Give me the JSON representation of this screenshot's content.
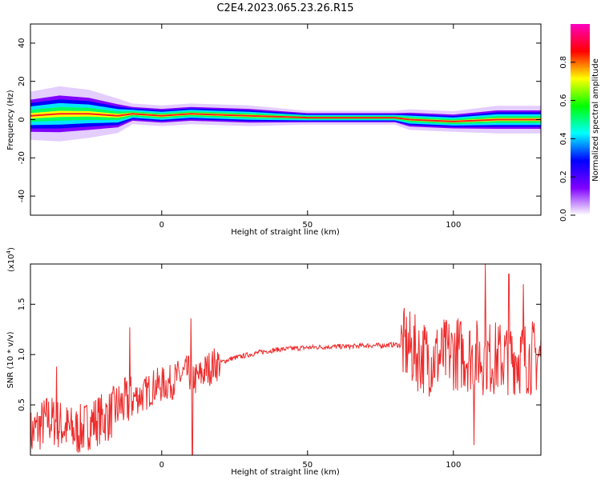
{
  "figure_title": "C2E4.2023.065.23.26.R15",
  "chart_data": [
    {
      "type": "heatmap",
      "xlabel": "Height of straight line (km)",
      "ylabel": "Frequency (Hz)",
      "xlim": [
        -45,
        130
      ],
      "ylim": [
        -50,
        50
      ],
      "x_ticks": [
        0,
        50,
        100
      ],
      "y_ticks": [
        -40,
        -20,
        0,
        20,
        40
      ],
      "colorbar": {
        "label": "Normalized spectral amplitude",
        "range": [
          0,
          1
        ],
        "ticks": [
          "0.0",
          "0.2",
          "0.4",
          "0.6",
          "0.8"
        ],
        "colormap": [
          "#ffffff",
          "#8000ff",
          "#0000ff",
          "#00ffff",
          "#00ff00",
          "#ffff00",
          "#ff0000",
          "#ff00c0"
        ]
      },
      "ridge_profile": [
        {
          "x": -45,
          "center": 2,
          "halfwidth": 7
        },
        {
          "x": -35,
          "center": 3,
          "halfwidth": 8
        },
        {
          "x": -25,
          "center": 3,
          "halfwidth": 7
        },
        {
          "x": -15,
          "center": 2,
          "halfwidth": 5
        },
        {
          "x": -10,
          "center": 3,
          "halfwidth": 3
        },
        {
          "x": 0,
          "center": 2,
          "halfwidth": 3
        },
        {
          "x": 10,
          "center": 3,
          "halfwidth": 3
        },
        {
          "x": 30,
          "center": 2,
          "halfwidth": 3
        },
        {
          "x": 50,
          "center": 1,
          "halfwidth": 2
        },
        {
          "x": 70,
          "center": 1,
          "halfwidth": 2
        },
        {
          "x": 80,
          "center": 1,
          "halfwidth": 2
        },
        {
          "x": 85,
          "center": 0,
          "halfwidth": 3
        },
        {
          "x": 100,
          "center": -1,
          "halfwidth": 3
        },
        {
          "x": 115,
          "center": 0,
          "halfwidth": 4
        },
        {
          "x": 130,
          "center": 0,
          "halfwidth": 4
        }
      ]
    },
    {
      "type": "line",
      "xlabel": "Height of straight line (km)",
      "ylabel": "SNR (10 * v/v)",
      "y_multiplier": "(x10",
      "y_multiplier_exp": "4",
      "y_multiplier_close": ")",
      "xlim": [
        -45,
        130
      ],
      "ylim": [
        0,
        19000
      ],
      "x_ticks": [
        0,
        50,
        100
      ],
      "y_ticks": [
        "0.5",
        "1.0",
        "1.5"
      ],
      "y_tick_values": [
        5000,
        10000,
        15000
      ],
      "series": [
        {
          "color": "#ee2b2b",
          "points": [
            [
              -45,
              2000
            ],
            [
              -42,
              2800
            ],
            [
              -39,
              3600
            ],
            [
              -36,
              3200
            ],
            [
              -33,
              2700
            ],
            [
              -30,
              2300
            ],
            [
              -27,
              2600
            ],
            [
              -24,
              3300
            ],
            [
              -21,
              3600
            ],
            [
              -18,
              3900
            ],
            [
              -15,
              4800
            ],
            [
              -12,
              5200
            ],
            [
              -9,
              5800
            ],
            [
              -6,
              6000
            ],
            [
              -3,
              6800
            ],
            [
              0,
              7000
            ],
            [
              3,
              7200
            ],
            [
              6,
              7800
            ],
            [
              9,
              8200
            ],
            [
              12,
              7500
            ],
            [
              15,
              8400
            ],
            [
              18,
              9000
            ],
            [
              21,
              9300
            ],
            [
              24,
              9600
            ],
            [
              27,
              9800
            ],
            [
              30,
              10000
            ],
            [
              35,
              10300
            ],
            [
              40,
              10500
            ],
            [
              45,
              10600
            ],
            [
              50,
              10700
            ],
            [
              55,
              10750
            ],
            [
              60,
              10800
            ],
            [
              65,
              10800
            ],
            [
              70,
              10900
            ],
            [
              75,
              10900
            ],
            [
              80,
              11000
            ],
            [
              84,
              10800
            ],
            [
              88,
              10000
            ],
            [
              92,
              9600
            ],
            [
              96,
              9800
            ],
            [
              100,
              10200
            ],
            [
              105,
              10000
            ],
            [
              110,
              9700
            ],
            [
              115,
              9600
            ],
            [
              120,
              9800
            ],
            [
              125,
              9700
            ],
            [
              130,
              9800
            ]
          ],
          "spikes": [
            {
              "x": -36,
              "value": 8800
            },
            {
              "x": -11,
              "value": 12700
            },
            {
              "x": 10,
              "value": 13600
            },
            {
              "x": 10.5,
              "value": 0
            },
            {
              "x": 111,
              "value": 19000
            },
            {
              "x": 107,
              "value": 1000
            },
            {
              "x": 119,
              "value": 18000
            },
            {
              "x": 124,
              "value": 17000
            }
          ]
        }
      ]
    }
  ]
}
